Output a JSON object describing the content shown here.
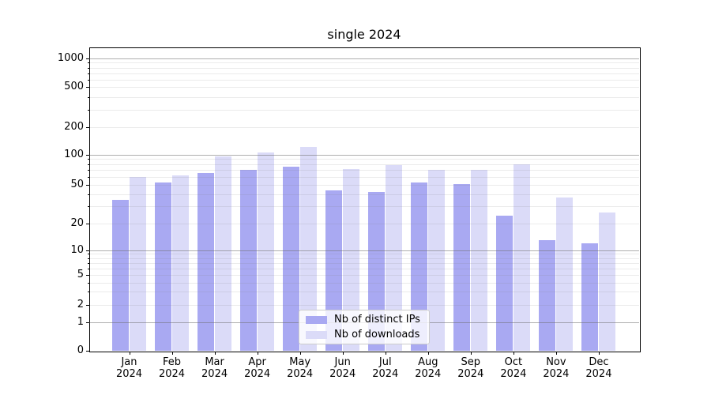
{
  "chart_data": {
    "type": "bar",
    "title": "single 2024",
    "categories": [
      "Jan 2024",
      "Feb 2024",
      "Mar 2024",
      "Apr 2024",
      "May 2024",
      "Jun 2024",
      "Jul 2024",
      "Aug 2024",
      "Sep 2024",
      "Oct 2024",
      "Nov 2024",
      "Dec 2024"
    ],
    "series": [
      {
        "name": "Nb of distinct IPs",
        "color": "#a9a9f2",
        "values": [
          35,
          53,
          65,
          70,
          75,
          44,
          42,
          53,
          51,
          24,
          13,
          12
        ]
      },
      {
        "name": "Nb of downloads",
        "color": "#dbdbf8",
        "values": [
          60,
          62,
          95,
          106,
          120,
          72,
          78,
          70,
          71,
          80,
          37,
          26
        ]
      }
    ],
    "xlabel": "",
    "ylabel": "",
    "yscale": "symlog",
    "yticks": [
      0,
      1,
      2,
      5,
      10,
      20,
      50,
      100,
      200,
      500,
      1000
    ],
    "ylim": [
      0,
      1300
    ],
    "grid": true,
    "grid_major_color": "#b0b0b0",
    "grid_minor_color": "#e9e9e9",
    "legend_position": "lower center",
    "background_color": "#ffffff",
    "text_color": "#000000"
  }
}
